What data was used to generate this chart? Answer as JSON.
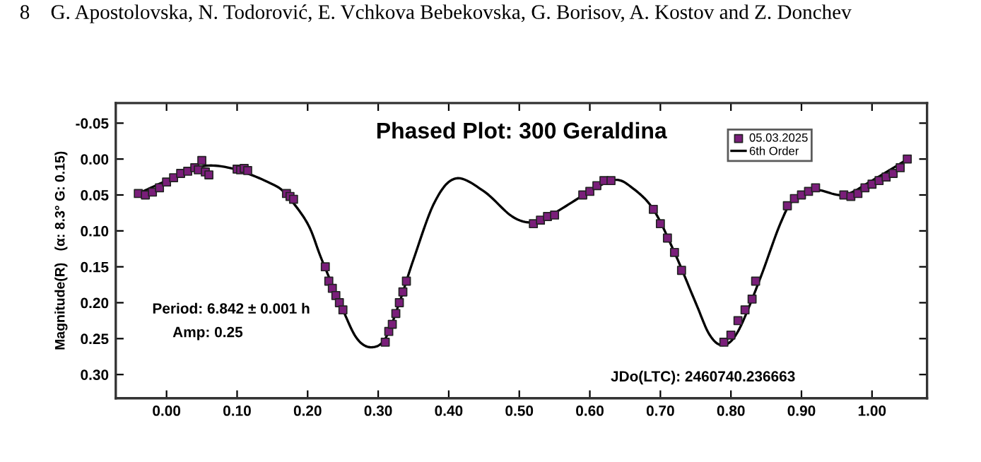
{
  "chart_data": {
    "type": "scatter",
    "title": "Phased Plot: 300 Geraldina",
    "ylabel": "Magnitude(R)   (α: 8.3° G: 0.15)",
    "annotations": [
      "8    G. Apostolovska, N. Todorović, E. Vchkova Bebekovska, G. Borisov, A. Kostov and Z. Donchev",
      "Period: 6.842 ± 0.001 h",
      "Amp: 0.25",
      "JDo(LTC): 2460740.236663"
    ],
    "series": [
      {
        "name": "05.03.2025",
        "color": "#7a1e7a",
        "marker": "square",
        "x": [
          -0.04,
          -0.03,
          -0.02,
          -0.01,
          0.0,
          0.01,
          0.02,
          0.03,
          0.04,
          0.045,
          0.05,
          0.055,
          0.06,
          0.1,
          0.105,
          0.11,
          0.115,
          0.17,
          0.175,
          0.18,
          0.225,
          0.23,
          0.235,
          0.24,
          0.245,
          0.25,
          0.31,
          0.315,
          0.32,
          0.325,
          0.33,
          0.335,
          0.34,
          0.52,
          0.53,
          0.54,
          0.55,
          0.59,
          0.6,
          0.61,
          0.62,
          0.63,
          0.69,
          0.7,
          0.71,
          0.72,
          0.73,
          0.79,
          0.8,
          0.81,
          0.82,
          0.83,
          0.835,
          0.88,
          0.89,
          0.9,
          0.91,
          0.92,
          0.96,
          0.97,
          0.98,
          0.99,
          1.0,
          1.01,
          1.02,
          1.03,
          1.04,
          1.05
        ],
        "values": [
          0.048,
          0.05,
          0.046,
          0.04,
          0.032,
          0.026,
          0.02,
          0.017,
          0.012,
          0.015,
          0.002,
          0.018,
          0.022,
          0.014,
          0.015,
          0.013,
          0.016,
          0.048,
          0.052,
          0.056,
          0.15,
          0.17,
          0.18,
          0.19,
          0.2,
          0.21,
          0.255,
          0.24,
          0.23,
          0.215,
          0.2,
          0.185,
          0.17,
          0.09,
          0.085,
          0.08,
          0.078,
          0.05,
          0.045,
          0.037,
          0.03,
          0.03,
          0.07,
          0.09,
          0.11,
          0.13,
          0.155,
          0.255,
          0.245,
          0.225,
          0.21,
          0.195,
          0.17,
          0.065,
          0.055,
          0.05,
          0.045,
          0.04,
          0.05,
          0.052,
          0.048,
          0.04,
          0.035,
          0.03,
          0.025,
          0.02,
          0.012,
          0.0
        ]
      },
      {
        "name": "6th Order",
        "type": "line",
        "color": "#000000",
        "marker": "none",
        "line_style": "solid",
        "x": [
          -0.04,
          0.0,
          0.03,
          0.06,
          0.1,
          0.15,
          0.17,
          0.2,
          0.22,
          0.25,
          0.27,
          0.29,
          0.31,
          0.33,
          0.35,
          0.38,
          0.41,
          0.45,
          0.49,
          0.52,
          0.55,
          0.6,
          0.635,
          0.66,
          0.69,
          0.72,
          0.75,
          0.77,
          0.789,
          0.81,
          0.84,
          0.87,
          0.89,
          0.92,
          0.96,
          1.0,
          1.049
        ],
        "values": [
          0.048,
          0.03,
          0.017,
          0.009,
          0.015,
          0.035,
          0.05,
          0.09,
          0.14,
          0.21,
          0.25,
          0.262,
          0.25,
          0.2,
          0.14,
          0.06,
          0.027,
          0.045,
          0.08,
          0.088,
          0.075,
          0.045,
          0.029,
          0.04,
          0.07,
          0.13,
          0.2,
          0.245,
          0.259,
          0.24,
          0.17,
          0.09,
          0.055,
          0.043,
          0.05,
          0.03,
          0.001
        ]
      }
    ],
    "xlim": [
      -0.072,
      1.078
    ],
    "ylim": [
      0.333,
      -0.078
    ],
    "xticks": [
      {
        "value": 0.0,
        "label": "0.00"
      },
      {
        "value": 0.1,
        "label": "0.10"
      },
      {
        "value": 0.2,
        "label": "0.20"
      },
      {
        "value": 0.3,
        "label": "0.30"
      },
      {
        "value": 0.4,
        "label": "0.40"
      },
      {
        "value": 0.5,
        "label": "0.50"
      },
      {
        "value": 0.6,
        "label": "0.60"
      },
      {
        "value": 0.7,
        "label": "0.70"
      },
      {
        "value": 0.8,
        "label": "0.80"
      },
      {
        "value": 0.9,
        "label": "0.90"
      },
      {
        "value": 1.0,
        "label": "1.00"
      }
    ],
    "yticks": [
      {
        "value": -0.05,
        "label": "-0.05"
      },
      {
        "value": 0.0,
        "label": "0.00"
      },
      {
        "value": 0.05,
        "label": "0.05"
      },
      {
        "value": 0.1,
        "label": "0.10"
      },
      {
        "value": 0.15,
        "label": "0.15"
      },
      {
        "value": 0.2,
        "label": "0.20"
      },
      {
        "value": 0.25,
        "label": "0.25"
      },
      {
        "value": 0.3,
        "label": "0.30"
      }
    ],
    "grid": false,
    "legend": "top right"
  }
}
